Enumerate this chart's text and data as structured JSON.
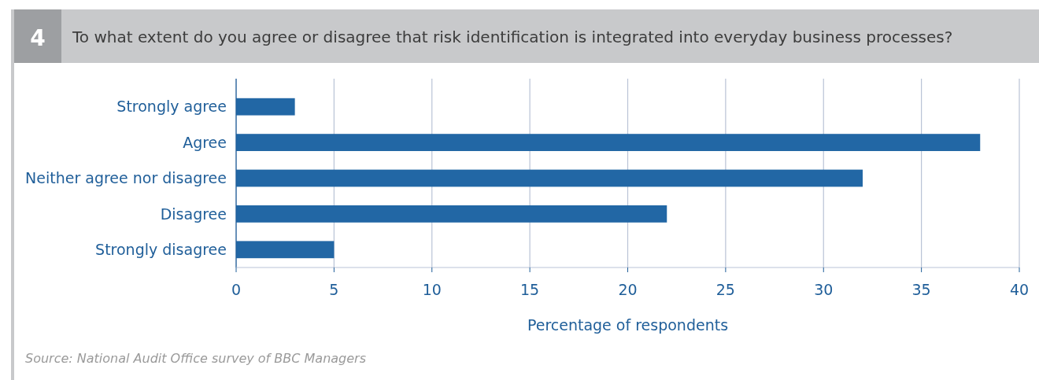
{
  "chart_data": {
    "type": "bar",
    "orientation": "horizontal",
    "title": "To what extent do you agree or disagree that risk identification is integrated into everyday business processes?",
    "categories": [
      "Strongly agree",
      "Agree",
      "Neither agree nor disagree",
      "Disagree",
      "Strongly disagree"
    ],
    "values": [
      3,
      38,
      32,
      22,
      5
    ],
    "color": "#2267a5",
    "xlim": [
      0,
      40
    ],
    "xticks": [
      0,
      5,
      10,
      15,
      20,
      25,
      30,
      35,
      40
    ],
    "grid": "x",
    "xlabel": "Percentage of respondents",
    "annotations": [
      "4",
      "Source: National Audit Office survey of BBC Managers"
    ]
  }
}
